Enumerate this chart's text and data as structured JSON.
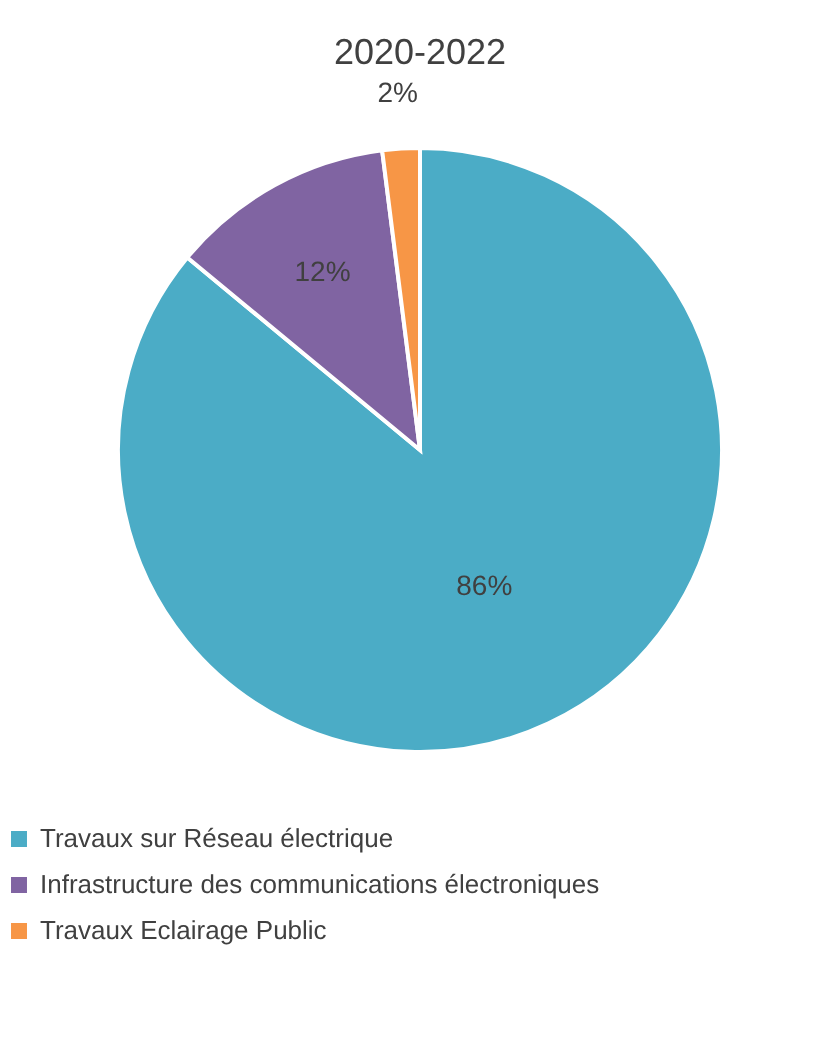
{
  "chart_data": {
    "type": "pie",
    "title": "2020-2022",
    "categories": [
      "Travaux sur Réseau électrique",
      "Infrastructure des communications électroniques",
      "Travaux Eclairage Public"
    ],
    "values": [
      86,
      12,
      2
    ],
    "colors": [
      "#4bacc6",
      "#8064a2",
      "#f79646"
    ],
    "value_labels": [
      "86%",
      "12%",
      "2%"
    ],
    "legend": "bottom left"
  }
}
